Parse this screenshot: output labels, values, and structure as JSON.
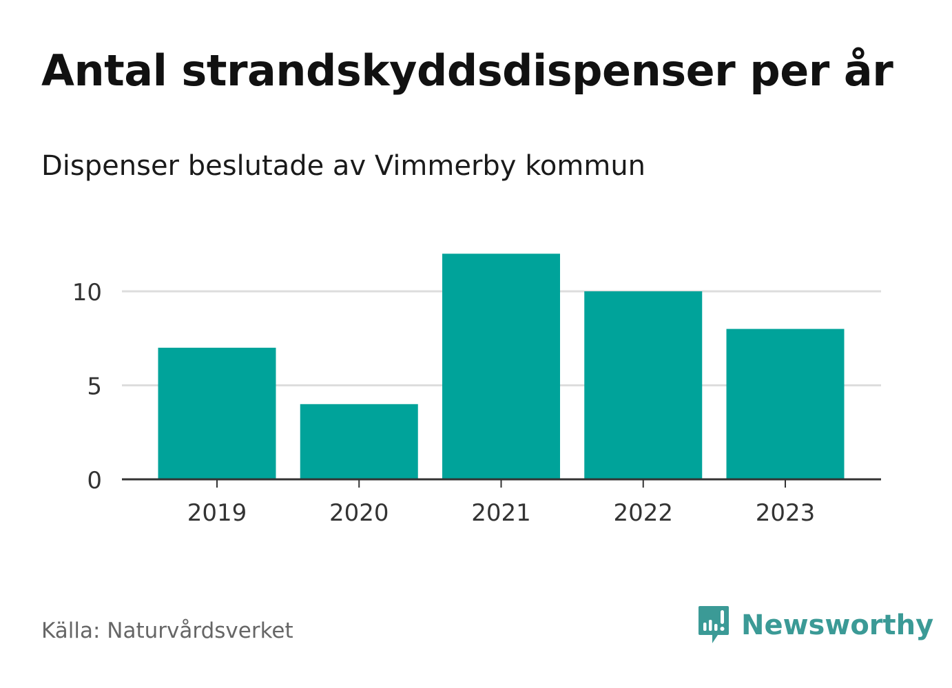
{
  "header": {
    "title": "Antal strandskyddsdispenser per år",
    "subtitle": "Dispenser beslutade av Vimmerby kommun"
  },
  "footer": {
    "source": "Källa: Naturvårdsverket",
    "brand": "Newsworthy"
  },
  "colors": {
    "bar": "#00a39a",
    "grid": "#dddddd",
    "axis": "#333333",
    "brand": "#3b9a96"
  },
  "chart_data": {
    "type": "bar",
    "title": "Antal strandskyddsdispenser per år",
    "subtitle": "Dispenser beslutade av Vimmerby kommun",
    "categories": [
      "2019",
      "2020",
      "2021",
      "2022",
      "2023"
    ],
    "values": [
      7,
      4,
      12,
      10,
      8
    ],
    "xlabel": "",
    "ylabel": "",
    "ylim": [
      0,
      12
    ],
    "yticks": [
      0,
      5,
      10
    ],
    "grid": true
  }
}
